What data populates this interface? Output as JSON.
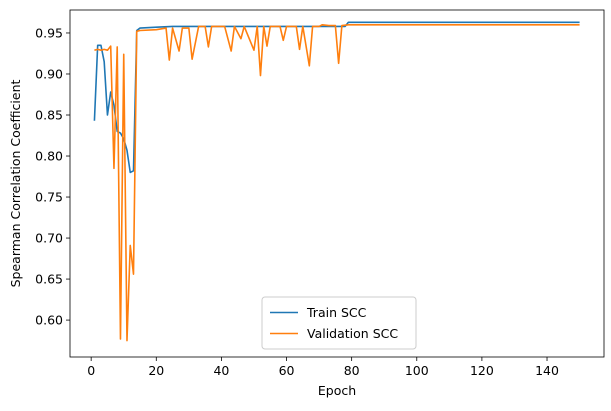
{
  "chart_data": {
    "type": "line",
    "title": "",
    "xlabel": "Epoch",
    "ylabel": "Spearman Correlation Coefficient",
    "xlim": [
      -6.5,
      157.5
    ],
    "ylim": [
      0.555,
      0.978
    ],
    "xticks": [
      0,
      20,
      40,
      60,
      80,
      100,
      120,
      140
    ],
    "yticks": [
      0.6,
      0.65,
      0.7,
      0.75,
      0.8,
      0.85,
      0.9,
      0.95
    ],
    "ytick_labels": [
      "0.60",
      "0.65",
      "0.70",
      "0.75",
      "0.80",
      "0.85",
      "0.90",
      "0.95"
    ],
    "grid": false,
    "legend_position": "lower center",
    "series": [
      {
        "name": "Train SCC",
        "color": "#1f77b4",
        "points": [
          [
            1,
            0.843
          ],
          [
            2,
            0.935
          ],
          [
            3,
            0.935
          ],
          [
            4,
            0.915
          ],
          [
            5,
            0.85
          ],
          [
            6,
            0.878
          ],
          [
            7,
            0.862
          ],
          [
            8,
            0.83
          ],
          [
            9,
            0.828
          ],
          [
            10,
            0.821
          ],
          [
            11,
            0.807
          ],
          [
            12,
            0.78
          ],
          [
            13,
            0.782
          ],
          [
            14,
            0.953
          ],
          [
            15,
            0.956
          ],
          [
            20,
            0.957
          ],
          [
            25,
            0.958
          ],
          [
            30,
            0.958
          ],
          [
            35,
            0.958
          ],
          [
            40,
            0.958
          ],
          [
            45,
            0.958
          ],
          [
            50,
            0.958
          ],
          [
            55,
            0.958
          ],
          [
            60,
            0.958
          ],
          [
            65,
            0.958
          ],
          [
            70,
            0.958
          ],
          [
            75,
            0.958
          ],
          [
            78,
            0.958
          ],
          [
            79,
            0.963
          ],
          [
            150,
            0.963
          ]
        ]
      },
      {
        "name": "Validation SCC",
        "color": "#ff7f0e",
        "points": [
          [
            1,
            0.929
          ],
          [
            2,
            0.93
          ],
          [
            3,
            0.929
          ],
          [
            4,
            0.93
          ],
          [
            5,
            0.929
          ],
          [
            6,
            0.934
          ],
          [
            7,
            0.785
          ],
          [
            8,
            0.933
          ],
          [
            9,
            0.577
          ],
          [
            10,
            0.924
          ],
          [
            11,
            0.575
          ],
          [
            12,
            0.691
          ],
          [
            13,
            0.656
          ],
          [
            14,
            0.952
          ],
          [
            15,
            0.953
          ],
          [
            20,
            0.954
          ],
          [
            23,
            0.956
          ],
          [
            24,
            0.917
          ],
          [
            25,
            0.956
          ],
          [
            27,
            0.928
          ],
          [
            28,
            0.956
          ],
          [
            30,
            0.956
          ],
          [
            31,
            0.918
          ],
          [
            33,
            0.958
          ],
          [
            35,
            0.958
          ],
          [
            36,
            0.933
          ],
          [
            37,
            0.958
          ],
          [
            40,
            0.958
          ],
          [
            41,
            0.958
          ],
          [
            43,
            0.928
          ],
          [
            44,
            0.958
          ],
          [
            46,
            0.943
          ],
          [
            47,
            0.958
          ],
          [
            50,
            0.929
          ],
          [
            51,
            0.958
          ],
          [
            52,
            0.898
          ],
          [
            53,
            0.958
          ],
          [
            54,
            0.934
          ],
          [
            55,
            0.958
          ],
          [
            58,
            0.958
          ],
          [
            59,
            0.941
          ],
          [
            60,
            0.958
          ],
          [
            63,
            0.958
          ],
          [
            64,
            0.93
          ],
          [
            65,
            0.958
          ],
          [
            67,
            0.91
          ],
          [
            68,
            0.958
          ],
          [
            70,
            0.958
          ],
          [
            71,
            0.96
          ],
          [
            73,
            0.959
          ],
          [
            75,
            0.959
          ],
          [
            76,
            0.913
          ],
          [
            77,
            0.959
          ],
          [
            79,
            0.96
          ],
          [
            150,
            0.96
          ]
        ]
      }
    ]
  }
}
